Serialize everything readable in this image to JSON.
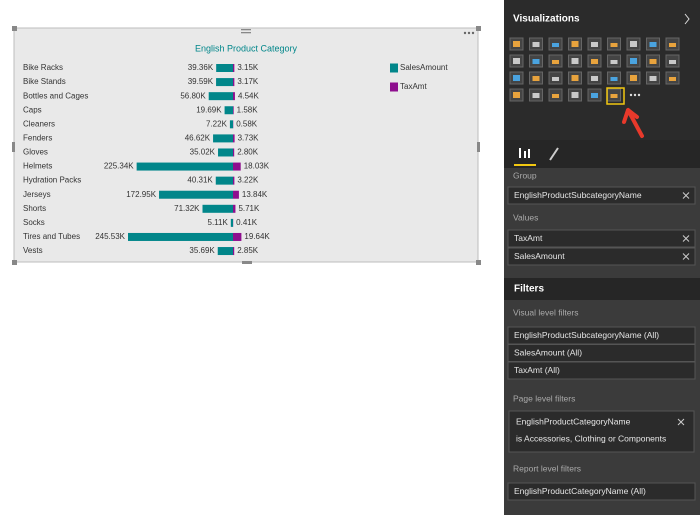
{
  "chart_data": {
    "type": "tornado",
    "title": "English Product Category",
    "categories": [
      "Bike Racks",
      "Bike Stands",
      "Bottles and Cages",
      "Caps",
      "Cleaners",
      "Fenders",
      "Gloves",
      "Helmets",
      "Hydration Packs",
      "Jerseys",
      "Shorts",
      "Socks",
      "Tires and Tubes",
      "Vests"
    ],
    "series": [
      {
        "name": "SalesAmount",
        "color": "#01868a",
        "values": [
          39360,
          39590,
          56800,
          19690,
          7220,
          46620,
          35020,
          225340,
          40310,
          172950,
          71320,
          5110,
          245530,
          35690
        ],
        "value_labels": [
          "39.36K",
          "39.59K",
          "56.80K",
          "19.69K",
          "7.22K",
          "46.62K",
          "35.02K",
          "225.34K",
          "40.31K",
          "172.95K",
          "71.32K",
          "5.11K",
          "245.53K",
          "35.69K"
        ]
      },
      {
        "name": "TaxAmt",
        "color": "#8e0f8e",
        "values": [
          3150,
          3170,
          4540,
          1580,
          580,
          3730,
          2800,
          18030,
          3220,
          13840,
          5710,
          410,
          19640,
          2850
        ],
        "value_labels": [
          "3.15K",
          "3.17K",
          "4.54K",
          "1.58K",
          "0.58K",
          "3.73K",
          "2.80K",
          "18.03K",
          "3.22K",
          "13.84K",
          "5.71K",
          "0.41K",
          "19.64K",
          "2.85K"
        ]
      }
    ]
  },
  "panel": {
    "title": "Visualizations",
    "group_label": "Group",
    "group_fields": [
      "EnglishProductSubcategoryName"
    ],
    "values_label": "Values",
    "value_fields": [
      "TaxAmt",
      "SalesAmount"
    ],
    "filters_title": "Filters",
    "visual_filters_label": "Visual level filters",
    "visual_filters": [
      "EnglishProductSubcategoryName (All)",
      "SalesAmount (All)",
      "TaxAmt (All)"
    ],
    "page_filters_label": "Page level filters",
    "page_filter": {
      "field": "EnglishProductCategoryName",
      "condition": "is Accessories, Clothing or Components"
    },
    "report_filters_label": "Report level filters",
    "report_filters": [
      "EnglishProductCategoryName (All)"
    ]
  }
}
